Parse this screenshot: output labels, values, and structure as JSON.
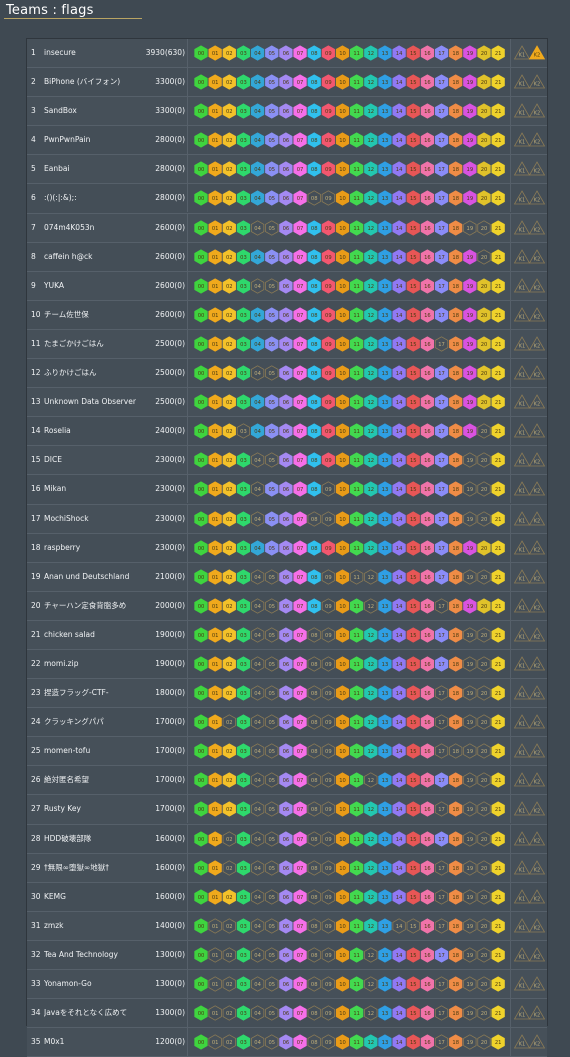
{
  "page": {
    "title": "Teams : flags"
  },
  "flag_labels": [
    "00",
    "01",
    "02",
    "03",
    "04",
    "05",
    "06",
    "07",
    "08",
    "09",
    "10",
    "11",
    "12",
    "13",
    "14",
    "15",
    "16",
    "17",
    "18",
    "19",
    "20",
    "21"
  ],
  "bonus_labels": [
    "K1",
    "K2"
  ],
  "flag_colors": [
    "#3fd43f",
    "#f0a91c",
    "#f3c12a",
    "#2ed86c",
    "#33a7d7",
    "#8a90f4",
    "#a489f2",
    "#f66fe8",
    "#30c0ee",
    "#f2576f",
    "#e99b18",
    "#42d94f",
    "#23c7b0",
    "#2f9fe4",
    "#9179f4",
    "#e75656",
    "#f073a9",
    "#8b8cf8",
    "#ef8c46",
    "#d953e0",
    "#e0c22a",
    "#efd22b"
  ],
  "teams": [
    {
      "rank": "1",
      "name": "insecure",
      "score": "3930(630)",
      "flags": "1111111111111111111111",
      "bonus": "01"
    },
    {
      "rank": "2",
      "name": "BiPhone (バイフォン)",
      "score": "3300(0)",
      "flags": "1111111111111111111111",
      "bonus": "00"
    },
    {
      "rank": "3",
      "name": "SandBox",
      "score": "3300(0)",
      "flags": "1111111111111111111111",
      "bonus": "00"
    },
    {
      "rank": "4",
      "name": "PwnPwnPain",
      "score": "2800(0)",
      "flags": "1111111111111111111111",
      "bonus": "00"
    },
    {
      "rank": "5",
      "name": "Eanbai",
      "score": "2800(0)",
      "flags": "1111111111111111111111",
      "bonus": "00"
    },
    {
      "rank": "6",
      "name": ":()(:|:&);:",
      "score": "2800(0)",
      "flags": "1111111100111111111111",
      "bonus": "00"
    },
    {
      "rank": "7",
      "name": "074m4K053n",
      "score": "2600(0)",
      "flags": "1111001111111111111001",
      "bonus": "00"
    },
    {
      "rank": "8",
      "name": "caffein h@ck",
      "score": "2600(0)",
      "flags": "1111111111111111111101",
      "bonus": "00"
    },
    {
      "rank": "9",
      "name": "YUKA",
      "score": "2600(0)",
      "flags": "1111001111111111111111",
      "bonus": "00"
    },
    {
      "rank": "10",
      "name": "チーム佐世保",
      "score": "2600(0)",
      "flags": "1111111111111111111111",
      "bonus": "00"
    },
    {
      "rank": "11",
      "name": "たまごかけごはん",
      "score": "2500(0)",
      "flags": "1111111111111111101111",
      "bonus": "00"
    },
    {
      "rank": "12",
      "name": "ふりかけごはん",
      "score": "2500(0)",
      "flags": "1111001111111111111111",
      "bonus": "00"
    },
    {
      "rank": "13",
      "name": "Unknown Data Observer",
      "score": "2500(0)",
      "flags": "1111111111111111111111",
      "bonus": "00"
    },
    {
      "rank": "14",
      "name": "Roselia",
      "score": "2400(0)",
      "flags": "1110111111111111111101",
      "bonus": "00"
    },
    {
      "rank": "15",
      "name": "DICE",
      "score": "2300(0)",
      "flags": "1111001111111111111001",
      "bonus": "00"
    },
    {
      "rank": "16",
      "name": "Mikan",
      "score": "2300(0)",
      "flags": "1111011110111111111001",
      "bonus": "00"
    },
    {
      "rank": "17",
      "name": "MochiShock",
      "score": "2300(0)",
      "flags": "1111011100111111111001",
      "bonus": "00"
    },
    {
      "rank": "18",
      "name": "raspberry",
      "score": "2300(0)",
      "flags": "1111111111111111111111",
      "bonus": "00"
    },
    {
      "rank": "19",
      "name": "Anan und Deutschland",
      "score": "2100(0)",
      "flags": "1111001110100111111001",
      "bonus": "00"
    },
    {
      "rank": "20",
      "name": "チャーハン定食背脂多め",
      "score": "2000(0)",
      "flags": "1111001110110111101111",
      "bonus": "00"
    },
    {
      "rank": "21",
      "name": "chicken salad",
      "score": "1900(0)",
      "flags": "1111001100111111111001",
      "bonus": "00"
    },
    {
      "rank": "22",
      "name": "momi.zip",
      "score": "1900(0)",
      "flags": "1111001100111111111001",
      "bonus": "00"
    },
    {
      "rank": "23",
      "name": "捏造フラッグ-CTF-",
      "score": "1800(0)",
      "flags": "1111001100111111101001",
      "bonus": "00"
    },
    {
      "rank": "24",
      "name": "クラッキングパパ",
      "score": "1700(0)",
      "flags": "1101001100111111101001",
      "bonus": "00"
    },
    {
      "rank": "25",
      "name": "momen-tofu",
      "score": "1700(0)",
      "flags": "1111001100111111100001",
      "bonus": "00"
    },
    {
      "rank": "26",
      "name": "絶対匿名希望",
      "score": "1700(0)",
      "flags": "1111001100110111111001",
      "bonus": "00"
    },
    {
      "rank": "27",
      "name": "Rusty Key",
      "score": "1700(0)",
      "flags": "1111001100111111101001",
      "bonus": "00"
    },
    {
      "rank": "28",
      "name": "HDD破壊部隊",
      "score": "1600(0)",
      "flags": "1101001100111111111001",
      "bonus": "00"
    },
    {
      "rank": "29",
      "name": "†無限∞堕獄∞地獄†",
      "score": "1600(0)",
      "flags": "1101001100111111101001",
      "bonus": "00"
    },
    {
      "rank": "30",
      "name": "KEMG",
      "score": "1600(0)",
      "flags": "1111001100111111101001",
      "bonus": "00"
    },
    {
      "rank": "31",
      "name": "zmzk",
      "score": "1400(0)",
      "flags": "1001001100111100101001",
      "bonus": "00"
    },
    {
      "rank": "32",
      "name": "Tea And Technology",
      "score": "1300(0)",
      "flags": "1001001100110111111001",
      "bonus": "00"
    },
    {
      "rank": "33",
      "name": "Yonamon-Go",
      "score": "1300(0)",
      "flags": "1001001100110111101001",
      "bonus": "00"
    },
    {
      "rank": "34",
      "name": "Javaをそれとなく広めて",
      "score": "1300(0)",
      "flags": "1001001100110111101001",
      "bonus": "00"
    },
    {
      "rank": "35",
      "name": "M0x1",
      "score": "1200(0)",
      "flags": "1001001100111111101001",
      "bonus": "00"
    }
  ]
}
